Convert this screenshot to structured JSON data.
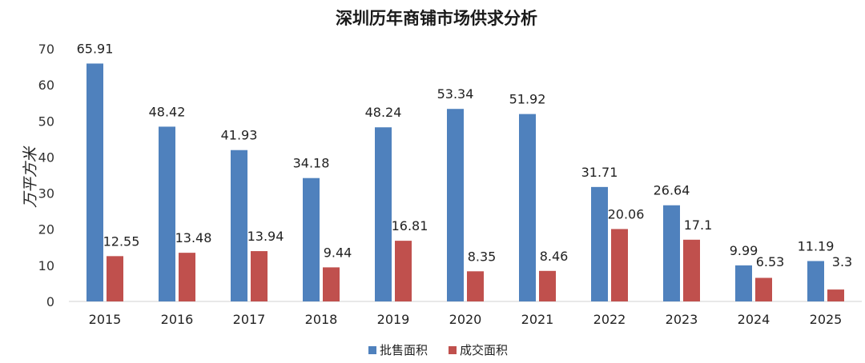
{
  "chart_data": {
    "type": "bar",
    "title": "深圳历年商铺市场供求分析",
    "xlabel": "",
    "ylabel": "万平方米",
    "ylim": [
      0,
      70
    ],
    "yticks": [
      0,
      10,
      20,
      30,
      40,
      50,
      60,
      70
    ],
    "categories": [
      "2015",
      "2016",
      "2017",
      "2018",
      "2019",
      "2020",
      "2021",
      "2022",
      "2023",
      "2024",
      "2025"
    ],
    "series": [
      {
        "name": "批售面积",
        "color": "#4F81BD",
        "values": [
          65.91,
          48.42,
          41.93,
          34.18,
          48.24,
          53.34,
          51.92,
          31.71,
          26.64,
          9.99,
          11.19
        ]
      },
      {
        "name": "成交面积",
        "color": "#C0504D",
        "values": [
          12.55,
          13.48,
          13.94,
          9.44,
          16.81,
          8.35,
          8.46,
          20.06,
          17.1,
          6.53,
          3.3
        ]
      }
    ],
    "legend": "bottom",
    "grid": false
  }
}
